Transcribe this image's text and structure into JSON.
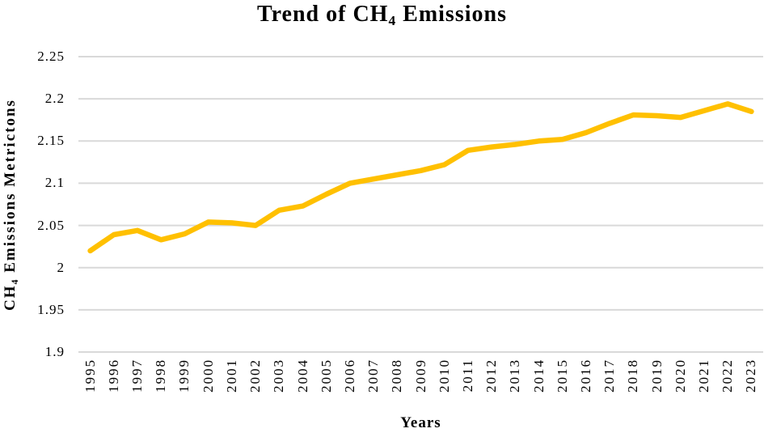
{
  "chart_data": {
    "type": "line",
    "title": {
      "before_sub": "Trend of CH",
      "sub": "4",
      "after_sub": " Emissions"
    },
    "x_axis": {
      "label": "Years",
      "categories": [
        "1995",
        "1996",
        "1997",
        "1998",
        "1999",
        "2000",
        "2001",
        "2002",
        "2003",
        "2004",
        "2005",
        "2006",
        "2007",
        "2008",
        "2009",
        "2010",
        "2011",
        "2012",
        "2013",
        "2014",
        "2015",
        "2016",
        "2017",
        "2018",
        "2019",
        "2020",
        "2021",
        "2022",
        "2023"
      ]
    },
    "y_axis": {
      "label_before_sub": "CH",
      "label_sub": "4",
      "label_after_sub": " Emissions Metrictons",
      "tick_labels": [
        "2.25",
        "2.2",
        "2.15",
        "2.1",
        "2.05",
        "2",
        "1.95",
        "1.9"
      ],
      "tick_values": [
        2.25,
        2.2,
        2.15,
        2.1,
        2.05,
        2.0,
        1.95,
        1.9
      ],
      "min": 1.9,
      "max": 2.25,
      "grid": true
    },
    "series": [
      {
        "color": "#FFC000",
        "values": [
          2.02,
          2.039,
          2.044,
          2.033,
          2.04,
          2.054,
          2.053,
          2.05,
          2.068,
          2.073,
          2.087,
          2.1,
          2.105,
          2.11,
          2.115,
          2.122,
          2.139,
          2.143,
          2.146,
          2.15,
          2.152,
          2.16,
          2.171,
          2.181,
          2.18,
          2.178,
          2.186,
          2.194,
          2.185
        ]
      }
    ],
    "legend_position": "none",
    "colors": {
      "line": "#FFC000",
      "gridline": "#D9D9D9",
      "background": "#FFFFFF",
      "text": "#000000"
    }
  }
}
